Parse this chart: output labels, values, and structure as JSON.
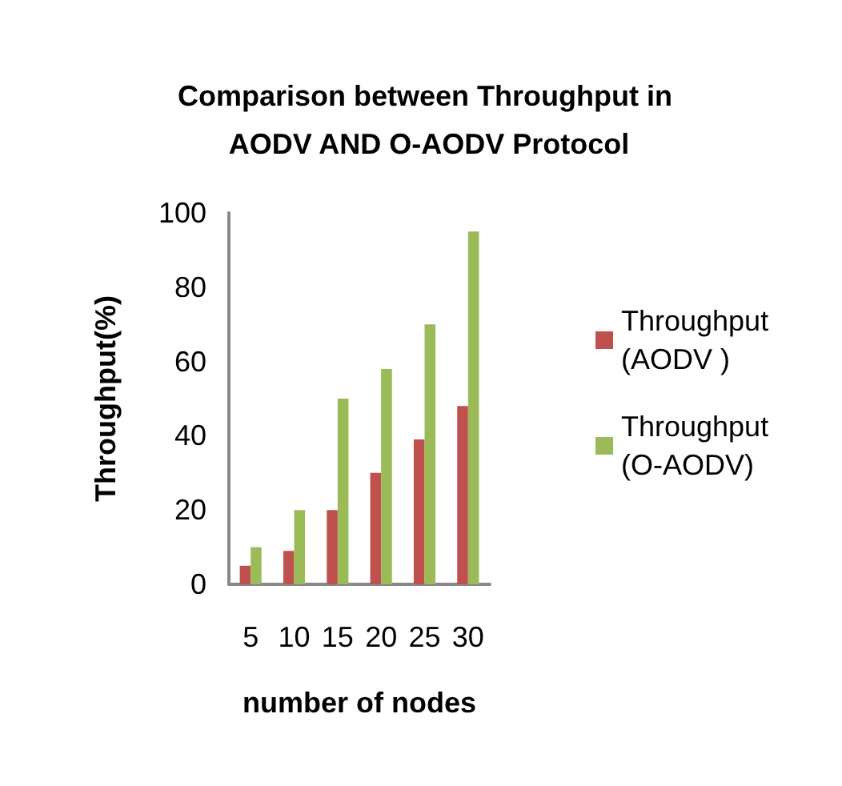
{
  "chart_data": {
    "type": "bar",
    "title": "Comparison between Throughput in AODV AND O-AODV Protocol",
    "xlabel": "number of nodes",
    "ylabel": "Throughput(%)",
    "categories": [
      "5",
      "10",
      "15",
      "20",
      "25",
      "30"
    ],
    "series": [
      {
        "name": "Throughput (AODV )",
        "color": "#c0504d",
        "values": [
          5,
          9,
          20,
          30,
          39,
          48
        ]
      },
      {
        "name": "Throughput (O-AODV)",
        "color": "#9bbb59",
        "values": [
          10,
          20,
          50,
          58,
          70,
          95
        ]
      }
    ],
    "ylim": [
      0,
      100
    ],
    "yticks": [
      0,
      20,
      40,
      60,
      80,
      100
    ],
    "grid": false,
    "legend": "right"
  }
}
